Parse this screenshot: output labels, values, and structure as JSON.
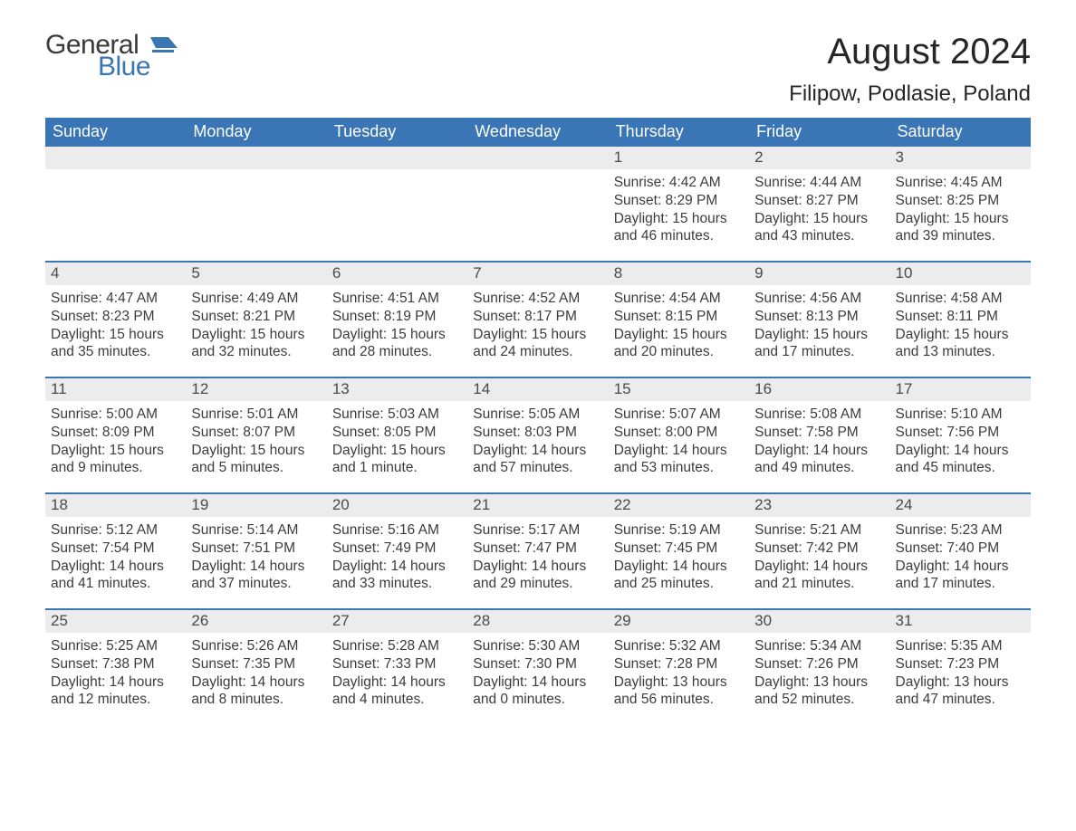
{
  "logo": {
    "word1": "General",
    "word2": "Blue",
    "icon_color": "#3a75b5",
    "text_dark": "#3a3a3a"
  },
  "title": "August 2024",
  "location": "Filipow, Podlasie, Poland",
  "colors": {
    "header_bg": "#3a75b5",
    "header_text": "#ffffff",
    "daynum_bg": "#ececec",
    "daynum_text": "#4a4a4a",
    "body_text": "#3c3c3c",
    "week_border": "#3a75b5",
    "page_bg": "#ffffff"
  },
  "weekdays": [
    "Sunday",
    "Monday",
    "Tuesday",
    "Wednesday",
    "Thursday",
    "Friday",
    "Saturday"
  ],
  "weeks": [
    [
      null,
      null,
      null,
      null,
      {
        "n": "1",
        "sunrise": "4:42 AM",
        "sunset": "8:29 PM",
        "daylight": "15 hours and 46 minutes."
      },
      {
        "n": "2",
        "sunrise": "4:44 AM",
        "sunset": "8:27 PM",
        "daylight": "15 hours and 43 minutes."
      },
      {
        "n": "3",
        "sunrise": "4:45 AM",
        "sunset": "8:25 PM",
        "daylight": "15 hours and 39 minutes."
      }
    ],
    [
      {
        "n": "4",
        "sunrise": "4:47 AM",
        "sunset": "8:23 PM",
        "daylight": "15 hours and 35 minutes."
      },
      {
        "n": "5",
        "sunrise": "4:49 AM",
        "sunset": "8:21 PM",
        "daylight": "15 hours and 32 minutes."
      },
      {
        "n": "6",
        "sunrise": "4:51 AM",
        "sunset": "8:19 PM",
        "daylight": "15 hours and 28 minutes."
      },
      {
        "n": "7",
        "sunrise": "4:52 AM",
        "sunset": "8:17 PM",
        "daylight": "15 hours and 24 minutes."
      },
      {
        "n": "8",
        "sunrise": "4:54 AM",
        "sunset": "8:15 PM",
        "daylight": "15 hours and 20 minutes."
      },
      {
        "n": "9",
        "sunrise": "4:56 AM",
        "sunset": "8:13 PM",
        "daylight": "15 hours and 17 minutes."
      },
      {
        "n": "10",
        "sunrise": "4:58 AM",
        "sunset": "8:11 PM",
        "daylight": "15 hours and 13 minutes."
      }
    ],
    [
      {
        "n": "11",
        "sunrise": "5:00 AM",
        "sunset": "8:09 PM",
        "daylight": "15 hours and 9 minutes."
      },
      {
        "n": "12",
        "sunrise": "5:01 AM",
        "sunset": "8:07 PM",
        "daylight": "15 hours and 5 minutes."
      },
      {
        "n": "13",
        "sunrise": "5:03 AM",
        "sunset": "8:05 PM",
        "daylight": "15 hours and 1 minute."
      },
      {
        "n": "14",
        "sunrise": "5:05 AM",
        "sunset": "8:03 PM",
        "daylight": "14 hours and 57 minutes."
      },
      {
        "n": "15",
        "sunrise": "5:07 AM",
        "sunset": "8:00 PM",
        "daylight": "14 hours and 53 minutes."
      },
      {
        "n": "16",
        "sunrise": "5:08 AM",
        "sunset": "7:58 PM",
        "daylight": "14 hours and 49 minutes."
      },
      {
        "n": "17",
        "sunrise": "5:10 AM",
        "sunset": "7:56 PM",
        "daylight": "14 hours and 45 minutes."
      }
    ],
    [
      {
        "n": "18",
        "sunrise": "5:12 AM",
        "sunset": "7:54 PM",
        "daylight": "14 hours and 41 minutes."
      },
      {
        "n": "19",
        "sunrise": "5:14 AM",
        "sunset": "7:51 PM",
        "daylight": "14 hours and 37 minutes."
      },
      {
        "n": "20",
        "sunrise": "5:16 AM",
        "sunset": "7:49 PM",
        "daylight": "14 hours and 33 minutes."
      },
      {
        "n": "21",
        "sunrise": "5:17 AM",
        "sunset": "7:47 PM",
        "daylight": "14 hours and 29 minutes."
      },
      {
        "n": "22",
        "sunrise": "5:19 AM",
        "sunset": "7:45 PM",
        "daylight": "14 hours and 25 minutes."
      },
      {
        "n": "23",
        "sunrise": "5:21 AM",
        "sunset": "7:42 PM",
        "daylight": "14 hours and 21 minutes."
      },
      {
        "n": "24",
        "sunrise": "5:23 AM",
        "sunset": "7:40 PM",
        "daylight": "14 hours and 17 minutes."
      }
    ],
    [
      {
        "n": "25",
        "sunrise": "5:25 AM",
        "sunset": "7:38 PM",
        "daylight": "14 hours and 12 minutes."
      },
      {
        "n": "26",
        "sunrise": "5:26 AM",
        "sunset": "7:35 PM",
        "daylight": "14 hours and 8 minutes."
      },
      {
        "n": "27",
        "sunrise": "5:28 AM",
        "sunset": "7:33 PM",
        "daylight": "14 hours and 4 minutes."
      },
      {
        "n": "28",
        "sunrise": "5:30 AM",
        "sunset": "7:30 PM",
        "daylight": "14 hours and 0 minutes."
      },
      {
        "n": "29",
        "sunrise": "5:32 AM",
        "sunset": "7:28 PM",
        "daylight": "13 hours and 56 minutes."
      },
      {
        "n": "30",
        "sunrise": "5:34 AM",
        "sunset": "7:26 PM",
        "daylight": "13 hours and 52 minutes."
      },
      {
        "n": "31",
        "sunrise": "5:35 AM",
        "sunset": "7:23 PM",
        "daylight": "13 hours and 47 minutes."
      }
    ]
  ],
  "labels": {
    "sunrise": "Sunrise:",
    "sunset": "Sunset:",
    "daylight": "Daylight:"
  }
}
